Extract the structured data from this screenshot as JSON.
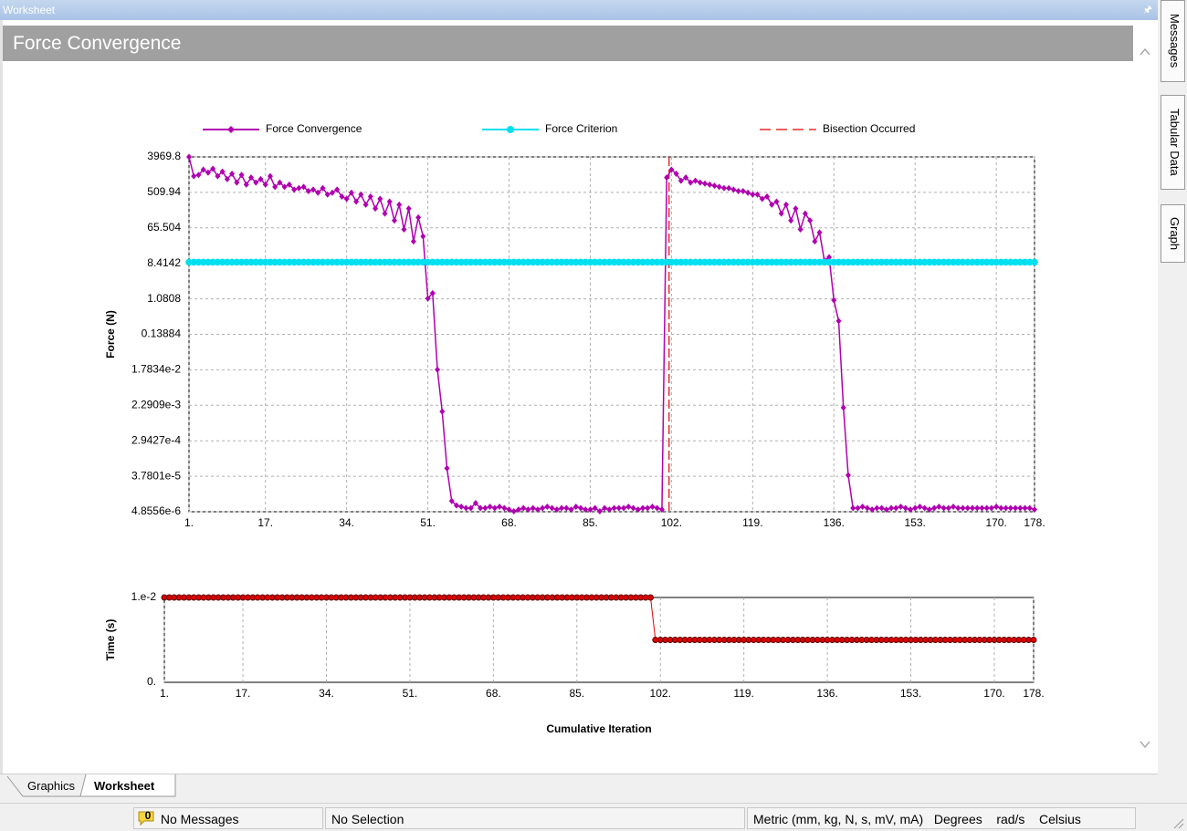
{
  "window": {
    "title": "Worksheet"
  },
  "header": {
    "title": "Force Convergence"
  },
  "side_tabs": [
    "Messages",
    "Tabular Data",
    "Graph"
  ],
  "bottom_tabs": [
    "Graphics",
    "Worksheet"
  ],
  "status": {
    "message_count": 0,
    "messages": "No Messages",
    "selection": "No Selection",
    "units": "Metric (mm, kg, N, s, mV, mA)",
    "angle": "Degrees",
    "rotation": "rad/s",
    "temperature": "Celsius"
  },
  "chart_data": [
    {
      "type": "line",
      "ylabel": "Force (N)",
      "ylog": true,
      "grid": "both",
      "x": [
        1,
        2,
        3,
        4,
        5,
        6,
        7,
        8,
        9,
        10,
        11,
        12,
        13,
        14,
        15,
        16,
        17,
        18,
        19,
        20,
        21,
        22,
        23,
        24,
        25,
        26,
        27,
        28,
        29,
        30,
        31,
        32,
        33,
        34,
        35,
        36,
        37,
        38,
        39,
        40,
        41,
        42,
        43,
        44,
        45,
        46,
        47,
        48,
        49,
        50,
        51,
        52,
        53,
        54,
        55,
        56,
        57,
        58,
        59,
        60,
        61,
        62,
        63,
        64,
        65,
        66,
        67,
        68,
        69,
        70,
        71,
        72,
        73,
        74,
        75,
        76,
        77,
        78,
        79,
        80,
        81,
        82,
        83,
        84,
        85,
        86,
        87,
        88,
        89,
        90,
        91,
        92,
        93,
        94,
        95,
        96,
        97,
        98,
        99,
        100,
        101,
        102,
        103,
        104,
        105,
        106,
        107,
        108,
        109,
        110,
        111,
        112,
        113,
        114,
        115,
        116,
        117,
        118,
        119,
        120,
        121,
        122,
        123,
        124,
        125,
        126,
        127,
        128,
        129,
        130,
        131,
        132,
        133,
        134,
        135,
        136,
        137,
        138,
        139,
        140,
        141,
        142,
        143,
        144,
        145,
        146,
        147,
        148,
        149,
        150,
        151,
        152,
        153,
        154,
        155,
        156,
        157,
        158,
        159,
        160,
        161,
        162,
        163,
        164,
        165,
        166,
        167,
        168,
        169,
        170,
        171,
        172,
        173,
        174,
        175,
        176,
        177,
        178
      ],
      "series": [
        {
          "name": "Force Convergence",
          "color": "#b000b0",
          "marker": "diamond",
          "values": [
            3969.8,
            1300,
            1400,
            1900,
            1600,
            2000,
            1300,
            1700,
            1100,
            1500,
            900,
            1400,
            800,
            1200,
            900,
            1100,
            800,
            1300,
            700,
            900,
            700,
            800,
            600,
            650,
            700,
            550,
            600,
            500,
            650,
            450,
            500,
            600,
            400,
            350,
            500,
            300,
            450,
            250,
            400,
            200,
            350,
            150,
            300,
            100,
            250,
            60,
            200,
            30,
            120,
            40,
            1.1,
            1.5,
            0.018,
            0.0016,
            6e-05,
            9e-06,
            7e-06,
            6.5e-06,
            6e-06,
            6e-06,
            8e-06,
            6e-06,
            6e-06,
            6.5e-06,
            6e-06,
            6.5e-06,
            6e-06,
            5.5e-06,
            5e-06,
            5.5e-06,
            6e-06,
            5.5e-06,
            6e-06,
            5.5e-06,
            6e-06,
            6.5e-06,
            6e-06,
            5.5e-06,
            6e-06,
            6e-06,
            5.5e-06,
            6.5e-06,
            6e-06,
            5.5e-06,
            5.5e-06,
            6e-06,
            5e-06,
            6e-06,
            5.5e-06,
            6e-06,
            6e-06,
            6e-06,
            6.5e-06,
            6e-06,
            5.5e-06,
            6e-06,
            6e-06,
            6.5e-06,
            6e-06,
            5.5e-06,
            1200,
            1900,
            1500,
            1000,
            1200,
            900,
            1000,
            900,
            850,
            800,
            750,
            700,
            650,
            650,
            600,
            550,
            550,
            500,
            450,
            450,
            350,
            400,
            250,
            300,
            150,
            250,
            100,
            200,
            60,
            150,
            100,
            30,
            50,
            10,
            12,
            1.0,
            0.3,
            0.002,
            4e-05,
            6e-06,
            6e-06,
            6.5e-06,
            6e-06,
            5.5e-06,
            6e-06,
            6e-06,
            5.5e-06,
            6e-06,
            6e-06,
            6.5e-06,
            6e-06,
            5.5e-06,
            6e-06,
            6.5e-06,
            6e-06,
            5.5e-06,
            6e-06,
            6.5e-06,
            6e-06,
            6e-06,
            6.5e-06,
            6e-06,
            6e-06,
            6e-06,
            6e-06,
            6e-06,
            6e-06,
            6e-06,
            6e-06,
            6.5e-06,
            6e-06,
            6e-06,
            6e-06,
            6e-06,
            6e-06,
            6e-06,
            6e-06,
            5.5e-06
          ]
        },
        {
          "name": "Force Criterion",
          "color": "#00e0f0",
          "marker": "circle",
          "values": [
            9,
            9,
            9,
            9,
            9,
            9,
            9,
            9,
            9,
            9,
            9,
            9,
            9,
            9,
            9,
            9,
            9,
            9,
            9,
            9,
            9,
            9,
            9,
            9,
            9,
            9,
            9,
            9,
            9,
            9,
            9,
            9,
            9,
            9,
            9,
            9,
            9,
            9,
            9,
            9,
            9,
            9,
            9,
            9,
            9,
            9,
            9,
            9,
            9,
            9,
            9,
            9,
            9,
            9,
            9,
            9,
            9,
            9,
            9,
            9,
            9,
            9,
            9,
            9,
            9,
            9,
            9,
            9,
            9,
            9,
            9,
            9,
            9,
            9,
            9,
            9,
            9,
            9,
            9,
            9,
            9,
            9,
            9,
            9,
            9,
            9,
            9,
            9,
            9,
            9,
            9,
            9,
            9,
            9,
            9,
            9,
            9,
            9,
            9,
            9,
            9,
            9,
            9,
            9,
            9,
            9,
            9,
            9,
            9,
            9,
            9,
            9,
            9,
            9,
            9,
            9,
            9,
            9,
            9,
            9,
            9,
            9,
            9,
            9,
            9,
            9,
            9,
            9,
            9,
            9,
            9,
            9,
            9,
            9,
            9,
            9,
            9,
            9,
            9,
            9,
            9,
            9,
            9,
            9,
            9,
            9,
            9,
            9,
            9,
            9,
            9,
            9,
            9,
            9,
            9,
            9,
            9,
            9,
            9,
            9,
            9,
            9,
            9,
            9,
            9,
            9,
            9,
            9,
            9,
            9,
            9,
            9,
            9,
            9,
            9,
            9,
            9,
            9
          ]
        }
      ],
      "vlines": {
        "name": "Bisection Occurred",
        "color": "#e00000",
        "x": [
          101.5
        ]
      },
      "xlim": [
        1,
        178
      ],
      "xticks": [
        {
          "value": 1,
          "label": "1."
        },
        {
          "value": 17,
          "label": "17."
        },
        {
          "value": 34,
          "label": "34."
        },
        {
          "value": 51,
          "label": "51."
        },
        {
          "value": 68,
          "label": "68."
        },
        {
          "value": 85,
          "label": "85."
        },
        {
          "value": 102,
          "label": "102."
        },
        {
          "value": 119,
          "label": "119."
        },
        {
          "value": 136,
          "label": "136."
        },
        {
          "value": 153,
          "label": "153."
        },
        {
          "value": 170,
          "label": "170."
        },
        {
          "value": 178,
          "label": "178."
        }
      ],
      "ylim": [
        4.8556e-06,
        3969.8
      ],
      "yticks": [
        3969.8,
        509.94,
        65.504,
        8.4142,
        1.0808,
        0.13884,
        {
          "value": 0.017834,
          "label": "1.7834e-2"
        },
        {
          "value": 0.0022909,
          "label": "2.2909e-3"
        },
        {
          "value": 0.00029427,
          "label": "2.9427e-4"
        },
        {
          "value": 3.7801e-05,
          "label": "3.7801e-5"
        },
        {
          "value": 4.8556e-06,
          "label": "4.8556e-6"
        }
      ]
    },
    {
      "type": "line",
      "ylabel": "Time (s)",
      "xlabel": "Cumulative Iteration",
      "ylog": false,
      "grid": "x",
      "x": [
        1,
        2,
        3,
        4,
        5,
        6,
        7,
        8,
        9,
        10,
        11,
        12,
        13,
        14,
        15,
        16,
        17,
        18,
        19,
        20,
        21,
        22,
        23,
        24,
        25,
        26,
        27,
        28,
        29,
        30,
        31,
        32,
        33,
        34,
        35,
        36,
        37,
        38,
        39,
        40,
        41,
        42,
        43,
        44,
        45,
        46,
        47,
        48,
        49,
        50,
        51,
        52,
        53,
        54,
        55,
        56,
        57,
        58,
        59,
        60,
        61,
        62,
        63,
        64,
        65,
        66,
        67,
        68,
        69,
        70,
        71,
        72,
        73,
        74,
        75,
        76,
        77,
        78,
        79,
        80,
        81,
        82,
        83,
        84,
        85,
        86,
        87,
        88,
        89,
        90,
        91,
        92,
        93,
        94,
        95,
        96,
        97,
        98,
        99,
        100,
        101,
        102,
        103,
        104,
        105,
        106,
        107,
        108,
        109,
        110,
        111,
        112,
        113,
        114,
        115,
        116,
        117,
        118,
        119,
        120,
        121,
        122,
        123,
        124,
        125,
        126,
        127,
        128,
        129,
        130,
        131,
        132,
        133,
        134,
        135,
        136,
        137,
        138,
        139,
        140,
        141,
        142,
        143,
        144,
        145,
        146,
        147,
        148,
        149,
        150,
        151,
        152,
        153,
        154,
        155,
        156,
        157,
        158,
        159,
        160,
        161,
        162,
        163,
        164,
        165,
        166,
        167,
        168,
        169,
        170,
        171,
        172,
        173,
        174,
        175,
        176,
        177,
        178
      ],
      "series": [
        {
          "color": "#e00000",
          "marker": "circle",
          "values": [
            0.01,
            0.01,
            0.01,
            0.01,
            0.01,
            0.01,
            0.01,
            0.01,
            0.01,
            0.01,
            0.01,
            0.01,
            0.01,
            0.01,
            0.01,
            0.01,
            0.01,
            0.01,
            0.01,
            0.01,
            0.01,
            0.01,
            0.01,
            0.01,
            0.01,
            0.01,
            0.01,
            0.01,
            0.01,
            0.01,
            0.01,
            0.01,
            0.01,
            0.01,
            0.01,
            0.01,
            0.01,
            0.01,
            0.01,
            0.01,
            0.01,
            0.01,
            0.01,
            0.01,
            0.01,
            0.01,
            0.01,
            0.01,
            0.01,
            0.01,
            0.01,
            0.01,
            0.01,
            0.01,
            0.01,
            0.01,
            0.01,
            0.01,
            0.01,
            0.01,
            0.01,
            0.01,
            0.01,
            0.01,
            0.01,
            0.01,
            0.01,
            0.01,
            0.01,
            0.01,
            0.01,
            0.01,
            0.01,
            0.01,
            0.01,
            0.01,
            0.01,
            0.01,
            0.01,
            0.01,
            0.01,
            0.01,
            0.01,
            0.01,
            0.01,
            0.01,
            0.01,
            0.01,
            0.01,
            0.01,
            0.01,
            0.01,
            0.01,
            0.01,
            0.01,
            0.01,
            0.01,
            0.01,
            0.01,
            0.01,
            0.005,
            0.005,
            0.005,
            0.005,
            0.005,
            0.005,
            0.005,
            0.005,
            0.005,
            0.005,
            0.005,
            0.005,
            0.005,
            0.005,
            0.005,
            0.005,
            0.005,
            0.005,
            0.005,
            0.005,
            0.005,
            0.005,
            0.005,
            0.005,
            0.005,
            0.005,
            0.005,
            0.005,
            0.005,
            0.005,
            0.005,
            0.005,
            0.005,
            0.005,
            0.005,
            0.005,
            0.005,
            0.005,
            0.005,
            0.005,
            0.005,
            0.005,
            0.005,
            0.005,
            0.005,
            0.005,
            0.005,
            0.005,
            0.005,
            0.005,
            0.005,
            0.005,
            0.005,
            0.005,
            0.005,
            0.005,
            0.005,
            0.005,
            0.005,
            0.005,
            0.005,
            0.005,
            0.005,
            0.005,
            0.005,
            0.005,
            0.005,
            0.005,
            0.005,
            0.005,
            0.005,
            0.005,
            0.005,
            0.005,
            0.005,
            0.005,
            0.005,
            0.005
          ]
        }
      ],
      "xlim": [
        1,
        178
      ],
      "xticks": [
        {
          "value": 1,
          "label": "1."
        },
        {
          "value": 17,
          "label": "17."
        },
        {
          "value": 34,
          "label": "34."
        },
        {
          "value": 51,
          "label": "51."
        },
        {
          "value": 68,
          "label": "68."
        },
        {
          "value": 85,
          "label": "85."
        },
        {
          "value": 102,
          "label": "102."
        },
        {
          "value": 119,
          "label": "119."
        },
        {
          "value": 136,
          "label": "136."
        },
        {
          "value": 153,
          "label": "153."
        },
        {
          "value": 170,
          "label": "170."
        },
        {
          "value": 178,
          "label": "178."
        }
      ],
      "ylim": [
        0,
        0.01
      ],
      "yticks": [
        {
          "value": 0.01,
          "label": "1.e-2"
        },
        {
          "value": 0,
          "label": "0."
        }
      ]
    }
  ]
}
